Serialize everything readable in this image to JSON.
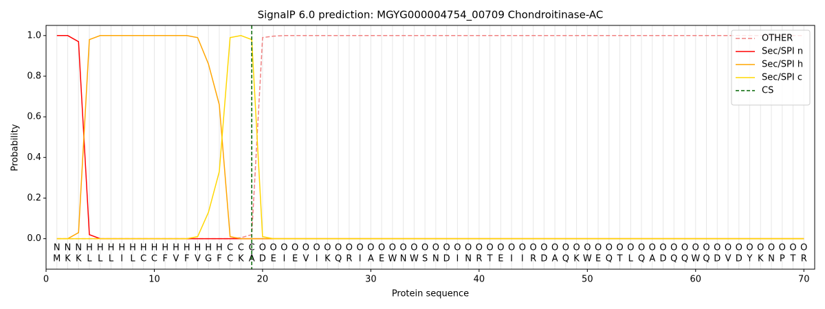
{
  "chart_data": {
    "type": "line",
    "title": "SignalP 6.0 prediction: MGYG000004754_00709 Chondroitinase-AC",
    "xlabel": "Protein sequence",
    "ylabel": "Probability",
    "xlim": [
      0,
      71
    ],
    "ylim": [
      -0.15,
      1.05
    ],
    "xticks": [
      0,
      10,
      20,
      30,
      40,
      50,
      60,
      70
    ],
    "yticks": [
      {
        "value": 0,
        "label": "0.0"
      },
      {
        "value": 0.2,
        "label": "0.2"
      },
      {
        "value": 0.4,
        "label": "0.4"
      },
      {
        "value": 0.6,
        "label": "0.6"
      },
      {
        "value": 0.8,
        "label": "0.8"
      },
      {
        "value": 1,
        "label": "1.0"
      }
    ],
    "vgrid": true,
    "legend": "upper right",
    "x": [
      1,
      2,
      3,
      4,
      5,
      6,
      7,
      8,
      9,
      10,
      11,
      12,
      13,
      14,
      15,
      16,
      17,
      18,
      19,
      20,
      21,
      22,
      23,
      24,
      25,
      26,
      27,
      28,
      29,
      30,
      31,
      32,
      33,
      34,
      35,
      36,
      37,
      38,
      39,
      40,
      41,
      42,
      43,
      44,
      45,
      46,
      47,
      48,
      49,
      50,
      51,
      52,
      53,
      54,
      55,
      56,
      57,
      58,
      59,
      60,
      61,
      62,
      63,
      64,
      65,
      66,
      67,
      68,
      69,
      70
    ],
    "residues": [
      "M",
      "K",
      "K",
      "L",
      "L",
      "L",
      "I",
      "L",
      "C",
      "C",
      "F",
      "V",
      "F",
      "V",
      "G",
      "F",
      "C",
      "K",
      "A",
      "D",
      "E",
      "I",
      "E",
      "V",
      "I",
      "K",
      "Q",
      "R",
      "I",
      "A",
      "E",
      "W",
      "N",
      "W",
      "S",
      "N",
      "D",
      "I",
      "N",
      "R",
      "T",
      "E",
      "I",
      "I",
      "R",
      "D",
      "A",
      "Q",
      "K",
      "W",
      "E",
      "Q",
      "T",
      "L",
      "Q",
      "A",
      "D",
      "Q",
      "Q",
      "W",
      "Q",
      "D",
      "V",
      "D",
      "Y",
      "K",
      "N",
      "P",
      "T",
      "R"
    ],
    "regions": [
      "N",
      "N",
      "N",
      "H",
      "H",
      "H",
      "H",
      "H",
      "H",
      "H",
      "H",
      "H",
      "H",
      "H",
      "H",
      "H",
      "C",
      "C",
      "C",
      "O",
      "O",
      "O",
      "O",
      "O",
      "O",
      "O",
      "O",
      "O",
      "O",
      "O",
      "O",
      "O",
      "O",
      "O",
      "O",
      "O",
      "O",
      "O",
      "O",
      "O",
      "O",
      "O",
      "O",
      "O",
      "O",
      "O",
      "O",
      "O",
      "O",
      "O",
      "O",
      "O",
      "O",
      "O",
      "O",
      "O",
      "O",
      "O",
      "O",
      "O",
      "O",
      "O",
      "O",
      "O",
      "O",
      "O",
      "O",
      "O",
      "O",
      "O"
    ],
    "region_colors": {
      "N": "#ff0000",
      "H": "#ffa500",
      "C": "#ffd700",
      "O": "#808080"
    },
    "series": [
      {
        "name": "OTHER",
        "color": "#f08080",
        "dashed": true,
        "values": [
          0,
          0,
          0,
          0,
          0,
          0,
          0,
          0,
          0,
          0,
          0,
          0,
          0,
          0,
          0,
          0,
          0,
          0.005,
          0.02,
          0.99,
          0.997,
          1,
          1,
          1,
          1,
          1,
          1,
          1,
          1,
          1,
          1,
          1,
          1,
          1,
          1,
          1,
          1,
          1,
          1,
          1,
          1,
          1,
          1,
          1,
          1,
          1,
          1,
          1,
          1,
          1,
          1,
          1,
          1,
          1,
          1,
          1,
          1,
          1,
          1,
          1,
          1,
          1,
          1,
          1,
          1,
          1,
          1,
          1,
          1,
          1
        ]
      },
      {
        "name": "Sec/SPI n",
        "color": "#ff0000",
        "values": [
          1,
          1,
          0.97,
          0.02,
          0,
          0,
          0,
          0,
          0,
          0,
          0,
          0,
          0,
          0,
          0,
          0,
          0,
          0,
          0,
          0,
          0,
          0,
          0,
          0,
          0,
          0,
          0,
          0,
          0,
          0,
          0,
          0,
          0,
          0,
          0,
          0,
          0,
          0,
          0,
          0,
          0,
          0,
          0,
          0,
          0,
          0,
          0,
          0,
          0,
          0,
          0,
          0,
          0,
          0,
          0,
          0,
          0,
          0,
          0,
          0,
          0,
          0,
          0,
          0,
          0,
          0,
          0,
          0,
          0,
          0
        ]
      },
      {
        "name": "Sec/SPI h",
        "color": "#ffa500",
        "values": [
          0,
          0,
          0.03,
          0.98,
          1,
          1,
          1,
          1,
          1,
          1,
          1,
          1,
          1,
          0.99,
          0.86,
          0.66,
          0.01,
          0,
          0,
          0,
          0,
          0,
          0,
          0,
          0,
          0,
          0,
          0,
          0,
          0,
          0,
          0,
          0,
          0,
          0,
          0,
          0,
          0,
          0,
          0,
          0,
          0,
          0,
          0,
          0,
          0,
          0,
          0,
          0,
          0,
          0,
          0,
          0,
          0,
          0,
          0,
          0,
          0,
          0,
          0,
          0,
          0,
          0,
          0,
          0,
          0,
          0,
          0,
          0,
          0
        ]
      },
      {
        "name": "Sec/SPI c",
        "color": "#ffd700",
        "values": [
          0,
          0,
          0,
          0,
          0,
          0,
          0,
          0,
          0,
          0,
          0,
          0,
          0,
          0.01,
          0.13,
          0.33,
          0.99,
          1,
          0.98,
          0.01,
          0,
          0,
          0,
          0,
          0,
          0,
          0,
          0,
          0,
          0,
          0,
          0,
          0,
          0,
          0,
          0,
          0,
          0,
          0,
          0,
          0,
          0,
          0,
          0,
          0,
          0,
          0,
          0,
          0,
          0,
          0,
          0,
          0,
          0,
          0,
          0,
          0,
          0,
          0,
          0,
          0,
          0,
          0,
          0,
          0,
          0,
          0,
          0,
          0,
          0
        ]
      }
    ],
    "vlines": [
      {
        "name": "CS",
        "x": 19,
        "color": "#006400"
      }
    ]
  }
}
